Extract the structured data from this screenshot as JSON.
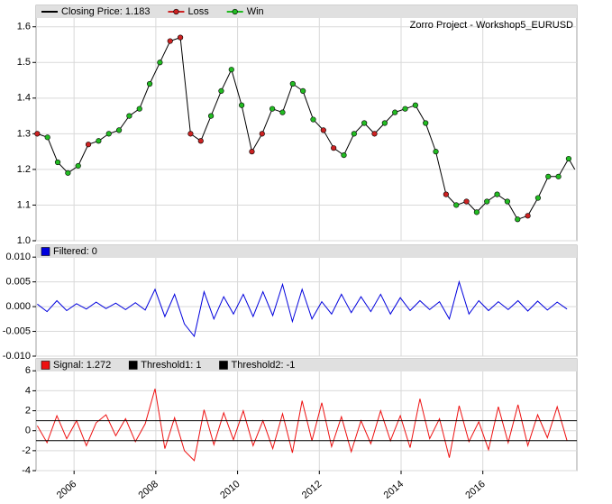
{
  "chart_data": [
    {
      "type": "line",
      "title": "Zorro Project - Workshop5_EURUSD",
      "xlim": [
        2005.07,
        2018.3
      ],
      "xticks": [
        2006,
        2008,
        2010,
        2012,
        2014,
        2016
      ],
      "ylim": [
        1.0,
        1.66
      ],
      "yticks": [
        {
          "value": 1,
          "label": "1.0"
        },
        1.1,
        1.2,
        1.3,
        1.4,
        1.5,
        1.6
      ],
      "grid": true,
      "series": [
        {
          "name": "Closing Price: 1.183",
          "color": "#000000",
          "mode": "line",
          "x": [
            2005.1,
            2005.35,
            2005.6,
            2005.85,
            2006.1,
            2006.35,
            2006.6,
            2006.85,
            2007.1,
            2007.35,
            2007.6,
            2007.85,
            2008.1,
            2008.35,
            2008.6,
            2008.85,
            2009.1,
            2009.35,
            2009.6,
            2009.85,
            2010.1,
            2010.35,
            2010.6,
            2010.85,
            2011.1,
            2011.35,
            2011.6,
            2011.85,
            2012.1,
            2012.35,
            2012.6,
            2012.85,
            2013.1,
            2013.35,
            2013.6,
            2013.85,
            2014.1,
            2014.35,
            2014.6,
            2014.85,
            2015.1,
            2015.35,
            2015.6,
            2015.85,
            2016.1,
            2016.35,
            2016.6,
            2016.85,
            2017.1,
            2017.35,
            2017.6,
            2017.85,
            2018.1,
            2018.25
          ],
          "values": [
            1.3,
            1.29,
            1.22,
            1.19,
            1.21,
            1.27,
            1.28,
            1.3,
            1.31,
            1.35,
            1.37,
            1.44,
            1.5,
            1.56,
            1.57,
            1.3,
            1.28,
            1.35,
            1.42,
            1.48,
            1.38,
            1.25,
            1.3,
            1.37,
            1.36,
            1.44,
            1.42,
            1.34,
            1.31,
            1.26,
            1.24,
            1.3,
            1.33,
            1.3,
            1.33,
            1.36,
            1.37,
            1.38,
            1.33,
            1.25,
            1.13,
            1.1,
            1.11,
            1.08,
            1.11,
            1.13,
            1.11,
            1.06,
            1.07,
            1.12,
            1.18,
            1.18,
            1.23,
            1.2
          ]
        },
        {
          "name": "Loss",
          "color": "#cc2222",
          "mode": "markers",
          "x": [
            2005.1,
            2006.35,
            2008.35,
            2008.6,
            2008.85,
            2009.1,
            2010.35,
            2010.6,
            2012.1,
            2012.35,
            2013.35,
            2015.1,
            2015.6,
            2017.1
          ],
          "values": [
            1.3,
            1.27,
            1.56,
            1.57,
            1.3,
            1.28,
            1.25,
            1.3,
            1.31,
            1.26,
            1.3,
            1.13,
            1.11,
            1.07
          ]
        },
        {
          "name": "Win",
          "color": "#22bb22",
          "mode": "markers",
          "x": [
            2005.35,
            2005.6,
            2005.85,
            2006.1,
            2006.6,
            2006.85,
            2007.1,
            2007.35,
            2007.6,
            2007.85,
            2008.1,
            2009.35,
            2009.6,
            2009.85,
            2010.1,
            2010.85,
            2011.1,
            2011.35,
            2011.6,
            2011.85,
            2012.6,
            2012.85,
            2013.1,
            2013.6,
            2013.85,
            2014.1,
            2014.35,
            2014.6,
            2014.85,
            2015.35,
            2015.85,
            2016.1,
            2016.35,
            2016.6,
            2016.85,
            2017.35,
            2017.6,
            2017.85,
            2018.1
          ],
          "values": [
            1.29,
            1.22,
            1.19,
            1.21,
            1.28,
            1.3,
            1.31,
            1.35,
            1.37,
            1.44,
            1.5,
            1.35,
            1.42,
            1.48,
            1.38,
            1.37,
            1.36,
            1.44,
            1.42,
            1.34,
            1.24,
            1.3,
            1.33,
            1.33,
            1.36,
            1.37,
            1.38,
            1.33,
            1.25,
            1.1,
            1.08,
            1.11,
            1.13,
            1.11,
            1.06,
            1.12,
            1.18,
            1.18,
            1.23
          ]
        }
      ]
    },
    {
      "type": "line",
      "xlim": [
        2005.07,
        2018.3
      ],
      "xticks": [
        2006,
        2008,
        2010,
        2012,
        2014,
        2016
      ],
      "ylim": [
        -0.01,
        0.0124
      ],
      "yticks": [
        {
          "value": 0.01,
          "label": "0.010"
        },
        0.005,
        {
          "value": 0,
          "label": "0.000"
        },
        -0.005,
        {
          "value": -0.01,
          "label": "-0.010"
        }
      ],
      "grid": true,
      "series": [
        {
          "name": "Filtered: 0",
          "color": "#0000dd",
          "mode": "line",
          "x": [
            2005.1,
            2005.34,
            2005.58,
            2005.82,
            2006.06,
            2006.3,
            2006.54,
            2006.78,
            2007.02,
            2007.26,
            2007.5,
            2007.74,
            2007.98,
            2008.22,
            2008.46,
            2008.7,
            2008.94,
            2009.18,
            2009.42,
            2009.66,
            2009.9,
            2010.14,
            2010.38,
            2010.62,
            2010.86,
            2011.1,
            2011.34,
            2011.58,
            2011.82,
            2012.06,
            2012.3,
            2012.54,
            2012.78,
            2013.02,
            2013.26,
            2013.5,
            2013.74,
            2013.98,
            2014.22,
            2014.46,
            2014.7,
            2014.94,
            2015.18,
            2015.42,
            2015.66,
            2015.9,
            2016.14,
            2016.38,
            2016.62,
            2016.86,
            2017.1,
            2017.34,
            2017.58,
            2017.82,
            2018.06
          ],
          "values": [
            0.0005,
            -0.001,
            0.0012,
            -0.0008,
            0.0006,
            -0.0005,
            0.0009,
            -0.0004,
            0.0007,
            -0.0006,
            0.0008,
            -0.0007,
            0.0035,
            -0.002,
            0.0025,
            -0.0035,
            -0.006,
            0.003,
            -0.0025,
            0.002,
            -0.0015,
            0.0025,
            -0.002,
            0.003,
            -0.0018,
            0.0045,
            -0.003,
            0.0035,
            -0.0025,
            0.001,
            -0.0015,
            0.0025,
            -0.0012,
            0.002,
            -0.001,
            0.0025,
            -0.0015,
            0.0018,
            -0.0008,
            0.0012,
            -0.0006,
            0.001,
            -0.0025,
            0.005,
            -0.0015,
            0.0012,
            -0.0008,
            0.001,
            -0.0006,
            0.0012,
            -0.0009,
            0.0011,
            -0.0007,
            0.0009,
            -0.0005
          ]
        }
      ]
    },
    {
      "type": "line",
      "xlim": [
        2005.07,
        2018.3
      ],
      "xticks": [
        2006,
        2008,
        2010,
        2012,
        2014,
        2016
      ],
      "ylim": [
        -4,
        7.2
      ],
      "yticks": [
        6,
        4,
        2,
        0,
        -2,
        -4
      ],
      "grid": true,
      "series": [
        {
          "name": "Signal: 1.272",
          "color": "#ee1111",
          "mode": "line",
          "x": [
            2005.1,
            2005.34,
            2005.58,
            2005.82,
            2006.06,
            2006.3,
            2006.54,
            2006.78,
            2007.02,
            2007.26,
            2007.5,
            2007.74,
            2007.98,
            2008.22,
            2008.46,
            2008.7,
            2008.94,
            2009.18,
            2009.42,
            2009.66,
            2009.9,
            2010.14,
            2010.38,
            2010.62,
            2010.86,
            2011.1,
            2011.34,
            2011.58,
            2011.82,
            2012.06,
            2012.3,
            2012.54,
            2012.78,
            2013.02,
            2013.26,
            2013.5,
            2013.74,
            2013.98,
            2014.22,
            2014.46,
            2014.7,
            2014.94,
            2015.18,
            2015.42,
            2015.66,
            2015.9,
            2016.14,
            2016.38,
            2016.62,
            2016.86,
            2017.1,
            2017.34,
            2017.58,
            2017.82,
            2018.06
          ],
          "values": [
            0.5,
            -1.2,
            1.5,
            -0.8,
            1.0,
            -1.5,
            0.8,
            1.6,
            -0.5,
            1.2,
            -1.1,
            0.7,
            4.2,
            -1.8,
            1.3,
            -2.0,
            -3.0,
            2.1,
            -1.4,
            1.8,
            -0.9,
            2.0,
            -1.5,
            1.0,
            -1.8,
            1.7,
            -2.2,
            3.0,
            -1.0,
            2.8,
            -1.6,
            1.4,
            -2.1,
            1.0,
            -1.3,
            2.0,
            -1.0,
            1.5,
            -1.7,
            3.2,
            -0.8,
            1.2,
            -2.7,
            2.5,
            -1.1,
            0.9,
            -1.9,
            2.4,
            -1.2,
            2.6,
            -1.5,
            1.6,
            -0.7,
            2.4,
            -1.0
          ]
        },
        {
          "name": "Threshold1: 1",
          "color": "#000000",
          "mode": "level",
          "level": 1
        },
        {
          "name": "Threshold2: -1",
          "color": "#000000",
          "mode": "level",
          "level": -1
        }
      ]
    }
  ]
}
